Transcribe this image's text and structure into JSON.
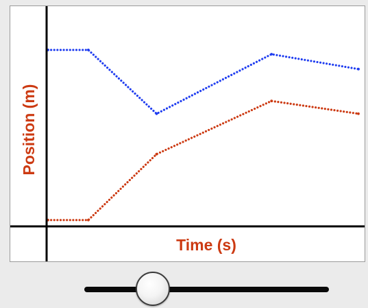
{
  "colors": {
    "series_a": "#1f3df0",
    "series_b": "#cc3a12",
    "axis_title": "#cc3a12",
    "axis": "#000000"
  },
  "chart_data": {
    "type": "line",
    "xlabel": "Time (s)",
    "ylabel": "Position (m)",
    "xlim": [
      0,
      10
    ],
    "ylim": [
      0,
      10
    ],
    "grid": false,
    "style": "dotted",
    "series": [
      {
        "color": "#1f3df0",
        "x": [
          0,
          1.3,
          3.5,
          7.2,
          10
        ],
        "y": [
          8.2,
          8.2,
          5.2,
          8.0,
          7.3
        ]
      },
      {
        "color": "#cc3a12",
        "x": [
          0,
          1.3,
          3.5,
          7.2,
          10
        ],
        "y": [
          0.2,
          0.2,
          3.3,
          5.8,
          5.2
        ]
      }
    ]
  },
  "slider": {
    "value": 0.28
  }
}
